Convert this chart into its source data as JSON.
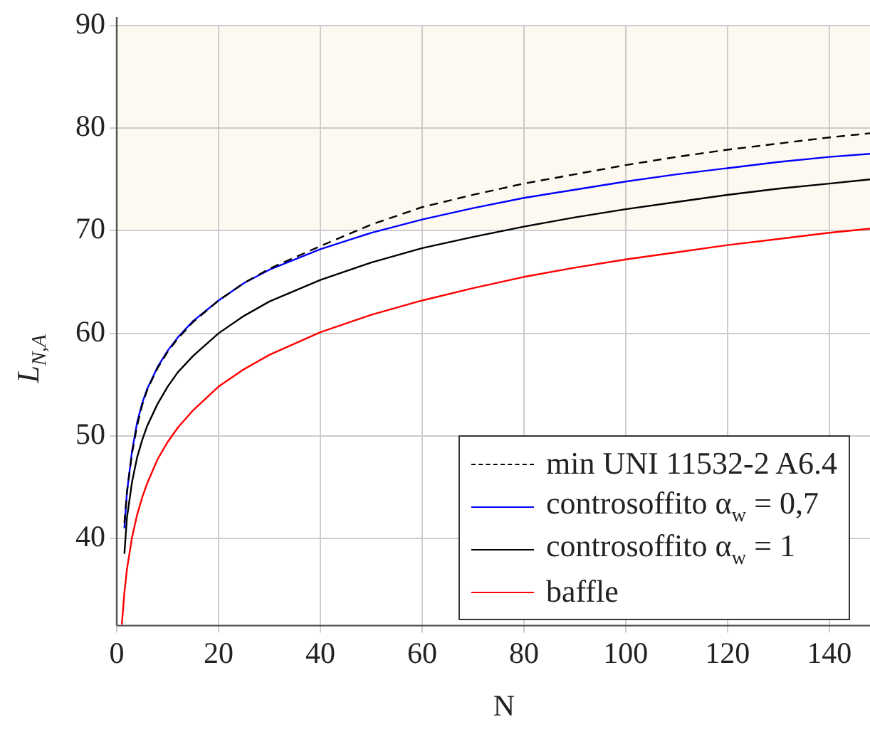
{
  "chart_data": {
    "type": "line",
    "xlabel": "N",
    "ylabel": "L$_{N,A}$",
    "xlim": [
      0,
      148
    ],
    "xticks": [
      0,
      20,
      40,
      60,
      80,
      100,
      120,
      140
    ],
    "ylim": [
      31.5,
      90
    ],
    "yticks": [
      40,
      50,
      60,
      70,
      80,
      90
    ],
    "grid": true,
    "legend": "bottom right",
    "marker": "none",
    "bands": [
      {
        "axis": "y",
        "from": 70,
        "to": 90,
        "color": "#fdf8f0"
      }
    ],
    "series": [
      {
        "name": "min UNI 11532-2 A6.4",
        "color": "#000000",
        "line_style": "dashed",
        "x": [
          1.5,
          2,
          3,
          4,
          5,
          6,
          8,
          10,
          12,
          15,
          20,
          25,
          30,
          40,
          50,
          60,
          70,
          80,
          90,
          100,
          110,
          120,
          130,
          140,
          148
        ],
        "values": [
          41.5,
          44.5,
          48.3,
          51.0,
          53.0,
          54.5,
          56.6,
          58.2,
          59.5,
          61.1,
          63.2,
          64.9,
          66.3,
          68.5,
          70.6,
          72.3,
          73.5,
          74.6,
          75.5,
          76.4,
          77.2,
          77.9,
          78.5,
          79.1,
          79.5
        ]
      },
      {
        "name": "controsoffito α$_{w}$ = 0,7",
        "color": "#0000ff",
        "line_style": "solid",
        "x": [
          1.5,
          2,
          3,
          4,
          5,
          6,
          8,
          10,
          12,
          15,
          20,
          25,
          30,
          40,
          50,
          60,
          70,
          80,
          90,
          100,
          110,
          120,
          130,
          140,
          148
        ],
        "values": [
          41.0,
          44.5,
          48.5,
          51.3,
          53.2,
          54.6,
          56.7,
          58.3,
          59.6,
          61.2,
          63.2,
          64.9,
          66.2,
          68.2,
          69.8,
          71.1,
          72.2,
          73.2,
          74.0,
          74.8,
          75.5,
          76.1,
          76.7,
          77.2,
          77.5
        ]
      },
      {
        "name": "controsoffito α$_{w}$ = 1",
        "color": "#000000",
        "line_style": "solid",
        "x": [
          1.5,
          2,
          3,
          4,
          5,
          6,
          8,
          10,
          12,
          15,
          20,
          25,
          30,
          40,
          50,
          60,
          70,
          80,
          90,
          100,
          110,
          120,
          130,
          140,
          148
        ],
        "values": [
          38.5,
          42.0,
          45.5,
          47.9,
          49.6,
          51.0,
          53.1,
          54.8,
          56.2,
          57.8,
          60.0,
          61.7,
          63.1,
          65.2,
          66.9,
          68.3,
          69.4,
          70.4,
          71.3,
          72.1,
          72.8,
          73.5,
          74.1,
          74.6,
          75.0
        ]
      },
      {
        "name": "baffle",
        "color": "#ff0000",
        "line_style": "solid",
        "x": [
          1,
          1.5,
          2,
          3,
          4,
          5,
          6,
          8,
          10,
          12,
          15,
          20,
          25,
          30,
          40,
          50,
          60,
          70,
          80,
          90,
          100,
          110,
          120,
          130,
          140,
          148
        ],
        "values": [
          31.6,
          34.7,
          37.0,
          40.1,
          42.3,
          44.0,
          45.4,
          47.7,
          49.4,
          50.8,
          52.5,
          54.8,
          56.5,
          57.9,
          60.1,
          61.8,
          63.2,
          64.4,
          65.5,
          66.4,
          67.2,
          67.9,
          68.6,
          69.2,
          69.8,
          70.2
        ]
      }
    ]
  }
}
